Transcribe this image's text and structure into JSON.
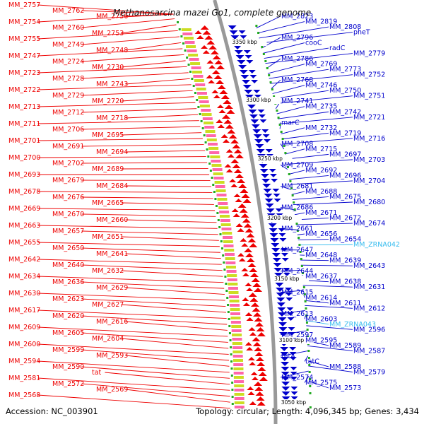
{
  "title": "Methanosarcina mazei Go1, complete genome",
  "footer": {
    "accession": "Accession: NC_003901",
    "summary": "Topology: circular; Length: 4,096,345 bp; Genes: 3,434"
  },
  "colors": {
    "forward_strand": "#ee0000",
    "reverse_strand": "#0000cc",
    "rna_label": "#33bbee",
    "backbone": "#999999",
    "tick_mark": "#22aa22"
  },
  "scale_marks": [
    "3350 kbp",
    "3300 kbp",
    "3250 kbp",
    "3200 kbp",
    "3150 kbp",
    "3100 kbp",
    "3050 kbp"
  ],
  "left_labels": [
    "MM_2757",
    "MM_2762",
    "MM_2756",
    "MM_2754",
    "MM_2760",
    "MM_2753",
    "MM_2755",
    "MM_2749",
    "MM_2748",
    "MM_2747",
    "MM_2724",
    "MM_2730",
    "MM_2723",
    "MM_2728",
    "MM_2743",
    "MM_2722",
    "MM_2729",
    "MM_2720",
    "MM_2713",
    "MM_2712",
    "MM_2718",
    "MM_2711",
    "MM_2706",
    "MM_2695",
    "MM_2701",
    "MM_2691",
    "MM_2694",
    "MM_2700",
    "MM_2702",
    "MM_2689",
    "MM_2693",
    "MM_2679",
    "MM_2684",
    "MM_2678",
    "MM_2676",
    "MM_2665",
    "MM_2669",
    "MM_2670",
    "MM_2660",
    "MM_2663",
    "MM_2657",
    "MM_2651",
    "MM_2655",
    "MM_2650",
    "MM_2641",
    "MM_2642",
    "MM_2640",
    "MM_2632",
    "MM_2634",
    "MM_2636",
    "MM_2629",
    "MM_2630",
    "MM_2623",
    "MM_2627",
    "MM_2617",
    "MM_2620",
    "MM_2616",
    "MM_2609",
    "MM_2605",
    "MM_2604",
    "MM_2600",
    "MM_2599",
    "MM_2593",
    "MM_2594",
    "MM_2590",
    "tat",
    "MM_2581",
    "MM_2572",
    "MM_2569",
    "MM_2568"
  ],
  "right_labels": [
    "MM_2823",
    "MM_2819",
    "MM_2808",
    "pheT",
    "MM_2796",
    "cooC",
    "radC",
    "MM_2779",
    "MM_2786",
    "MM_2769",
    "MM_2773",
    "MM_2752",
    "MM_2768",
    "MM_2746",
    "MM_2750",
    "MM_2751",
    "MM_2741",
    "MM_2735",
    "MM_2742",
    "MM_2721",
    "marC",
    "MM_2732",
    "MM_2719",
    "MM_2716",
    "MM_2708",
    "MM_2715",
    "MM_2697",
    "MM_2703",
    "MM_2709",
    "MM_2692",
    "MM_2696",
    "MM_2704",
    "MM_2681",
    "MM_2688",
    "MM_2675",
    "MM_2680",
    "MM_2686",
    "MM_2671",
    "MM_2672",
    "MM_2674",
    "MM_2661",
    "MM_2656",
    "MM_2654",
    "MM_ZRNA042",
    "MM_2647",
    "MM_2648",
    "MM_2639",
    "MM_2643",
    "MM_2644",
    "MM_2637",
    "MM_2638",
    "MM_2631",
    "MM_2615",
    "MM_2614",
    "MM_2611",
    "MM_2612",
    "MM_2613",
    "MM_2603",
    "MM_ZRNA043",
    "MM_2596",
    "MM_2597",
    "MM_2595",
    "MM_2589",
    "MM_2587",
    "tatA",
    "tatC",
    "MM_2588",
    "MM_2579",
    "MM_2574",
    "MM_2575",
    "MM_2573"
  ]
}
